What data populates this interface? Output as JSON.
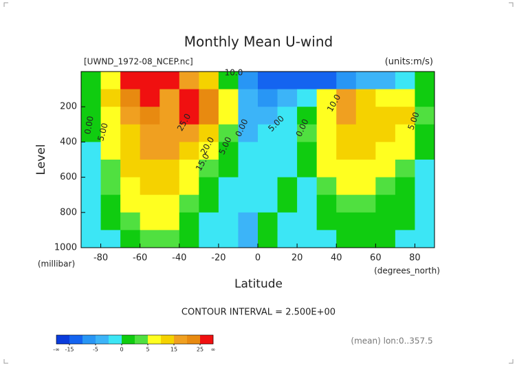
{
  "chart_data": {
    "type": "contour",
    "title": "Monthly Mean U-wind",
    "subtitle_left": "[UWND_1972-08_NCEP.nc]",
    "subtitle_right": "(units:m/s)",
    "y_label": "Level",
    "y_units": "(millibar)",
    "x_label": "Latitude",
    "x_units": "(degrees_north)",
    "contour_note": "CONTOUR INTERVAL = 2.500E+00",
    "footer_note": "(mean) lon:0..357.5",
    "xlim": [
      -90,
      90
    ],
    "xticks": [
      -80,
      -60,
      -40,
      -20,
      0,
      20,
      40,
      60,
      80
    ],
    "ylim": [
      1000,
      0
    ],
    "yticks": [
      200,
      400,
      600,
      800,
      1000
    ],
    "x": [
      -85,
      -75,
      -65,
      -55,
      -45,
      -35,
      -25,
      -15,
      -5,
      5,
      15,
      25,
      35,
      45,
      55,
      65,
      75,
      85
    ],
    "y": [
      50,
      150,
      250,
      350,
      450,
      550,
      650,
      750,
      850,
      950
    ],
    "z": [
      [
        0,
        5,
        30,
        30,
        25,
        15,
        10,
        0,
        -10,
        -15,
        -15,
        -15,
        -12,
        -8,
        -5,
        -3,
        -2,
        0
      ],
      [
        2,
        12,
        22,
        26,
        18,
        25,
        22,
        5,
        -5,
        -7,
        -3,
        -1,
        5,
        15,
        10,
        8,
        5,
        0
      ],
      [
        1,
        8,
        18,
        20,
        18,
        26,
        20,
        5,
        -3,
        -5,
        -1,
        2,
        8,
        17,
        12,
        11,
        12,
        3
      ],
      [
        1,
        6,
        14,
        18,
        17,
        18,
        13,
        3,
        -3,
        -1,
        -1,
        3,
        8,
        12,
        11,
        11,
        9,
        2
      ],
      [
        -1,
        5,
        12,
        15,
        15,
        12,
        7,
        1,
        -1,
        -1,
        -1,
        2,
        7,
        10,
        10,
        8,
        6,
        1
      ],
      [
        -1,
        4,
        10,
        12,
        12,
        9,
        3,
        0,
        -1,
        -1,
        -1,
        1,
        5,
        8,
        8,
        6,
        4,
        -1
      ],
      [
        -1,
        3,
        8,
        10,
        10,
        6,
        1,
        -1,
        -1,
        -1,
        1,
        -1,
        3,
        6,
        6,
        4,
        2,
        -1
      ],
      [
        -1,
        2,
        6,
        8,
        7,
        3,
        0,
        -1,
        -2,
        -1,
        1,
        -1,
        2,
        4,
        4,
        2,
        1,
        -1
      ],
      [
        -1,
        1,
        4,
        6,
        5,
        2,
        -1,
        -1,
        -3,
        1,
        -1,
        -1,
        1,
        2,
        2,
        1,
        1,
        -1
      ],
      [
        -1,
        -1,
        2,
        3,
        3,
        1,
        -1,
        -1,
        -3,
        1,
        -1,
        -1,
        -1,
        1,
        1,
        1,
        -1,
        -1
      ]
    ],
    "levels": [
      -15,
      -10,
      -5,
      -2.5,
      0,
      2.5,
      5,
      10,
      15,
      20,
      25
    ],
    "colors": [
      "#0a3cdc",
      "#1464f0",
      "#2896f5",
      "#3cb4f8",
      "#3ce6f5",
      "#10cc10",
      "#50e040",
      "#ffff20",
      "#f5d200",
      "#f0a020",
      "#e88a10",
      "#f01010"
    ],
    "colorbar_ticks": [
      -15,
      -5,
      0,
      5,
      15,
      25
    ],
    "colorbar_min_label": "-∞",
    "colorbar_max_label": "∞",
    "contour_labels": [
      "0.00",
      "5.00",
      "25.0",
      "20.0",
      "15.0",
      "10.0",
      "5.00",
      "0.00",
      "5.00",
      "0.00",
      "10.0",
      "5.00"
    ]
  }
}
